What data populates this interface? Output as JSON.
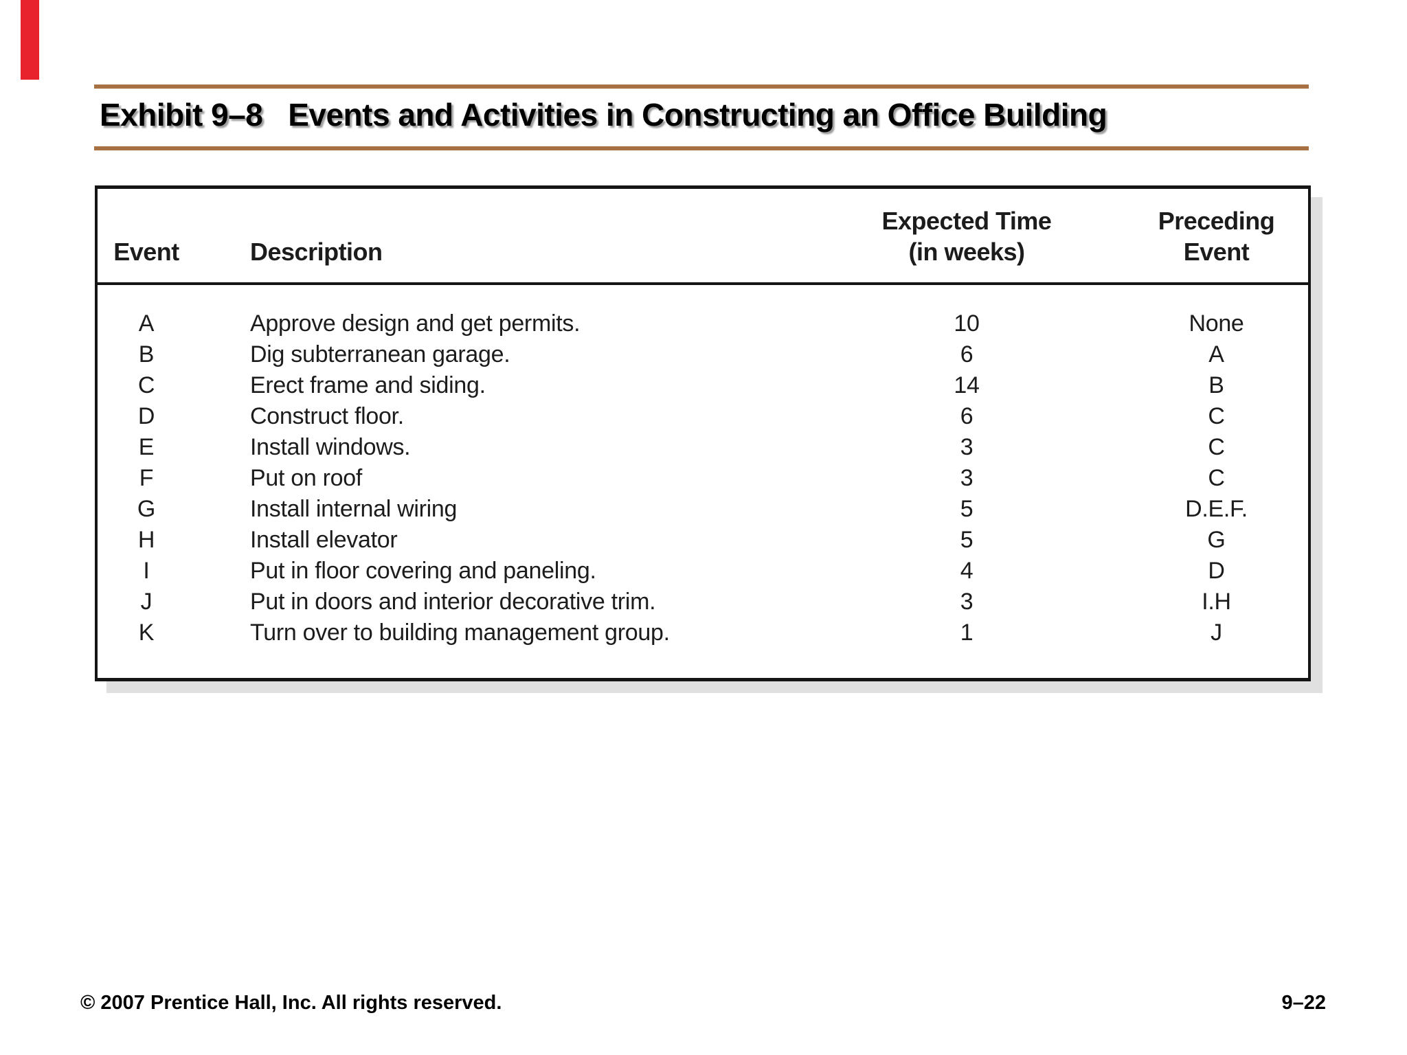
{
  "colors": {
    "red_accent": "#e8232d",
    "rule_brown": "#a87144",
    "table_border": "#151515",
    "table_shadow": "#e0e0e0"
  },
  "title": "Exhibit 9–8   Events and Activities in Constructing an Office Building",
  "table": {
    "headers": {
      "event": "Event",
      "description": "Description",
      "time_line1": "Expected Time",
      "time_line2": "(in weeks)",
      "preceding_line1": "Preceding",
      "preceding_line2": "Event"
    },
    "rows": [
      {
        "event": "A",
        "description": "Approve design and get permits.",
        "time": "10",
        "preceding": "None"
      },
      {
        "event": "B",
        "description": "Dig subterranean garage.",
        "time": "6",
        "preceding": "A"
      },
      {
        "event": "C",
        "description": "Erect frame and siding.",
        "time": "14",
        "preceding": "B"
      },
      {
        "event": "D",
        "description": "Construct floor.",
        "time": "6",
        "preceding": "C"
      },
      {
        "event": "E",
        "description": "Install windows.",
        "time": "3",
        "preceding": "C"
      },
      {
        "event": "F",
        "description": "Put on roof",
        "time": "3",
        "preceding": "C"
      },
      {
        "event": "G",
        "description": "Install internal wiring",
        "time": "5",
        "preceding": "D.E.F."
      },
      {
        "event": "H",
        "description": "Install elevator",
        "time": "5",
        "preceding": "G"
      },
      {
        "event": "I",
        "description": "Put in floor covering and paneling.",
        "time": "4",
        "preceding": "D"
      },
      {
        "event": "J",
        "description": "Put in doors and interior decorative trim.",
        "time": "3",
        "preceding": "I.H"
      },
      {
        "event": "K",
        "description": "Turn over to building management group.",
        "time": "1",
        "preceding": "J"
      }
    ]
  },
  "footer": {
    "copyright": "© 2007 Prentice Hall, Inc. All rights reserved.",
    "page": "9–22"
  }
}
